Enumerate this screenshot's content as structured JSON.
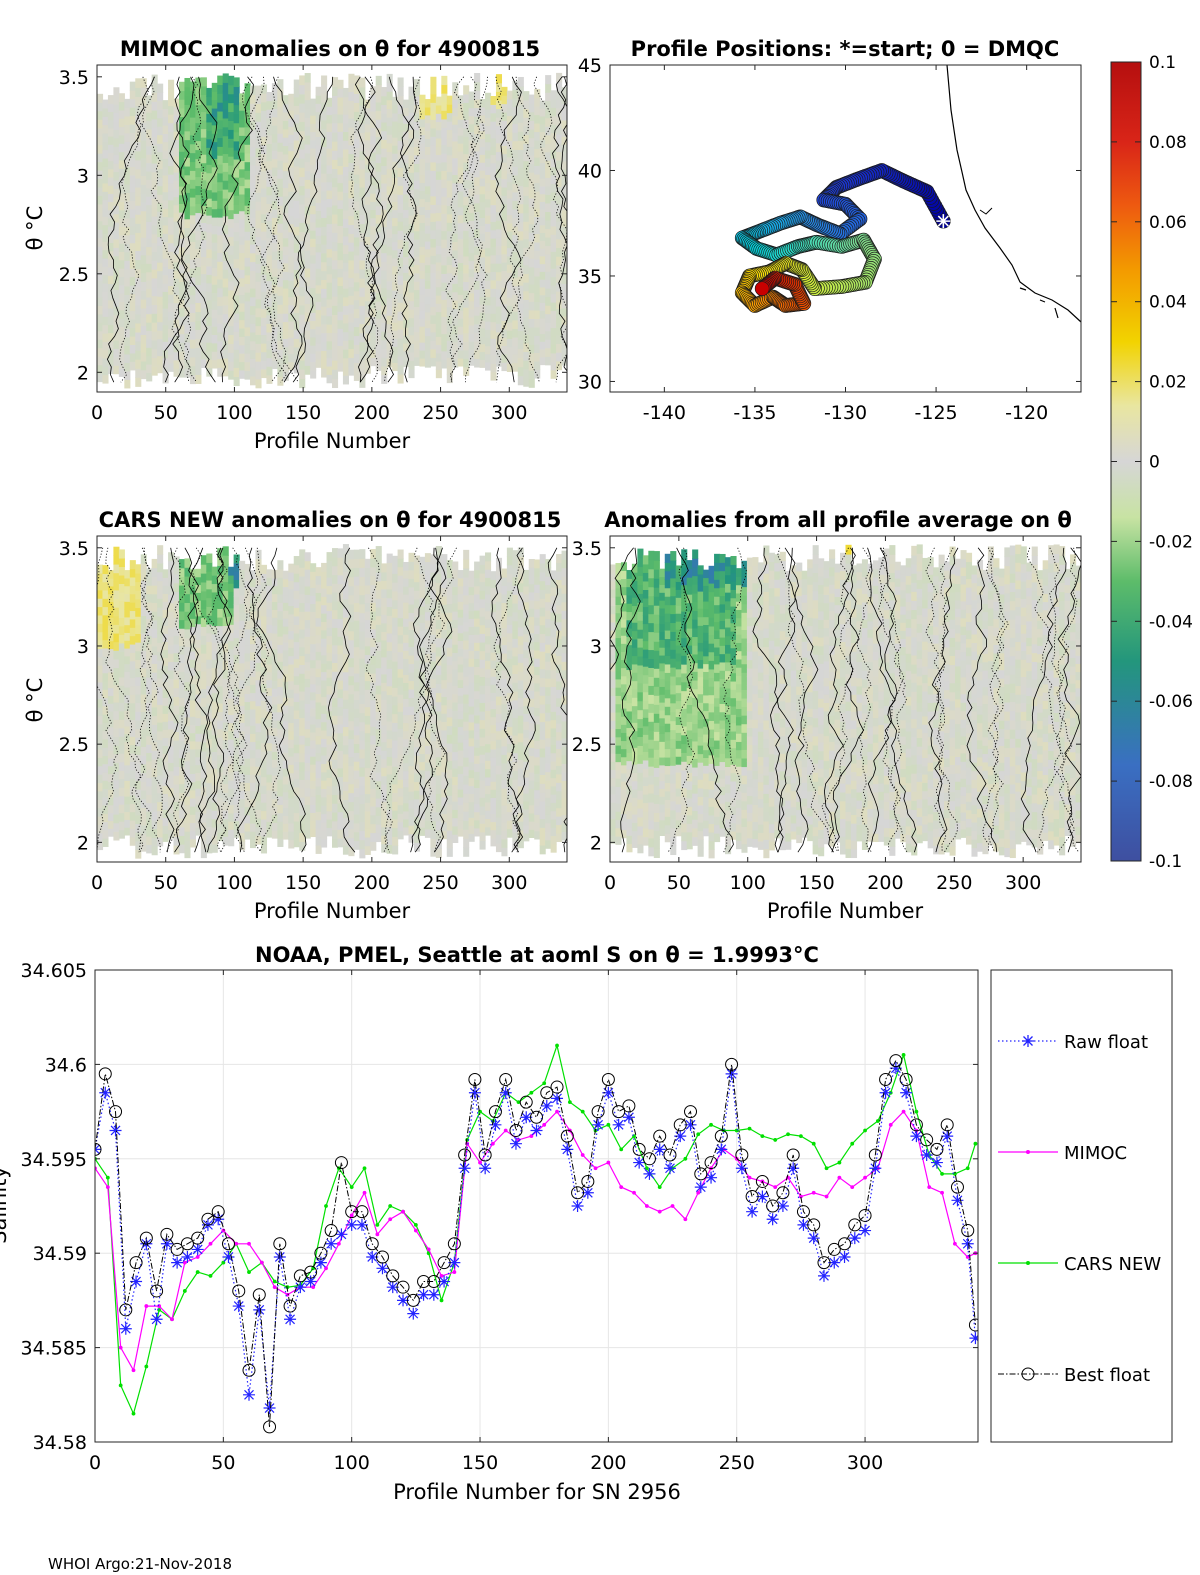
{
  "footer": "WHOI Argo:21-Nov-2018",
  "colors": {
    "raw": "#2323ff",
    "mimoc": "#ff00ff",
    "cars": "#00e000",
    "best": "#000000",
    "grid": "#e6e6e6"
  },
  "chart_data": [
    {
      "id": "mimoc",
      "type": "heatmap",
      "title": "MIMOC anomalies on θ  for 4900815",
      "xlabel": "Profile Number",
      "ylabel": "θ °C",
      "xlim": [
        0,
        342
      ],
      "ylim": [
        1.9,
        3.56
      ],
      "xticks": [
        "0",
        "50",
        "100",
        "150",
        "200",
        "250",
        "300"
      ],
      "yticks": [
        "2",
        "2.5",
        "3",
        "3.5"
      ],
      "anomaly_range": [
        -0.06,
        0.03
      ],
      "highlights": [
        {
          "x": [
            60,
            110
          ],
          "y": [
            2.8,
            3.5
          ],
          "value": -0.03
        },
        {
          "x": [
            80,
            105
          ],
          "y": [
            3.1,
            3.5
          ],
          "value": -0.05
        },
        {
          "x": [
            235,
            260
          ],
          "y": [
            3.3,
            3.5
          ],
          "value": 0.02
        },
        {
          "x": [
            285,
            300
          ],
          "y": [
            3.35,
            3.5
          ],
          "value": 0.02
        }
      ]
    },
    {
      "id": "positions",
      "type": "scatter",
      "title": "Profile Positions: *=start; 0 = DMQC",
      "xlim": [
        -143,
        -117
      ],
      "ylim": [
        29.5,
        45
      ],
      "xticks": [
        "-140",
        "-135",
        "-130",
        "-125",
        "-120"
      ],
      "yticks": [
        "30",
        "35",
        "40",
        "45"
      ],
      "track": [
        {
          "lon": -124.6,
          "lat": 37.6
        },
        {
          "lon": -125.5,
          "lat": 39.0
        },
        {
          "lon": -126.8,
          "lat": 39.5
        },
        {
          "lon": -128.0,
          "lat": 40.0
        },
        {
          "lon": -129.3,
          "lat": 39.6
        },
        {
          "lon": -130.5,
          "lat": 39.2
        },
        {
          "lon": -131.2,
          "lat": 38.6
        },
        {
          "lon": -130.0,
          "lat": 38.4
        },
        {
          "lon": -129.2,
          "lat": 37.7
        },
        {
          "lon": -130.3,
          "lat": 37.0
        },
        {
          "lon": -131.5,
          "lat": 37.4
        },
        {
          "lon": -132.5,
          "lat": 37.8
        },
        {
          "lon": -133.6,
          "lat": 37.5
        },
        {
          "lon": -134.8,
          "lat": 37.1
        },
        {
          "lon": -135.7,
          "lat": 36.8
        },
        {
          "lon": -134.9,
          "lat": 36.3
        },
        {
          "lon": -133.8,
          "lat": 36.0
        },
        {
          "lon": -132.6,
          "lat": 36.4
        },
        {
          "lon": -131.6,
          "lat": 36.6
        },
        {
          "lon": -130.2,
          "lat": 36.4
        },
        {
          "lon": -129.0,
          "lat": 36.7
        },
        {
          "lon": -128.4,
          "lat": 35.8
        },
        {
          "lon": -128.9,
          "lat": 34.7
        },
        {
          "lon": -130.2,
          "lat": 34.5
        },
        {
          "lon": -131.7,
          "lat": 34.4
        },
        {
          "lon": -132.4,
          "lat": 35.3
        },
        {
          "lon": -133.3,
          "lat": 35.6
        },
        {
          "lon": -134.2,
          "lat": 35.2
        },
        {
          "lon": -135.3,
          "lat": 35.0
        },
        {
          "lon": -135.7,
          "lat": 34.2
        },
        {
          "lon": -135.0,
          "lat": 33.6
        },
        {
          "lon": -134.0,
          "lat": 34.0
        },
        {
          "lon": -133.3,
          "lat": 33.6
        },
        {
          "lon": -132.3,
          "lat": 33.7
        },
        {
          "lon": -132.8,
          "lat": 34.6
        },
        {
          "lon": -133.9,
          "lat": 34.9
        },
        {
          "lon": -134.6,
          "lat": 34.4
        }
      ]
    },
    {
      "id": "cars",
      "type": "heatmap",
      "title": "CARS NEW anomalies on θ for 4900815",
      "xlabel": "Profile Number",
      "ylabel": "θ °C",
      "xlim": [
        0,
        342
      ],
      "ylim": [
        1.9,
        3.56
      ],
      "xticks": [
        "0",
        "50",
        "100",
        "150",
        "200",
        "250",
        "300"
      ],
      "yticks": [
        "2",
        "2.5",
        "3",
        "3.5"
      ],
      "highlights": [
        {
          "x": [
            0,
            30
          ],
          "y": [
            3.0,
            3.5
          ],
          "value": 0.02
        },
        {
          "x": [
            60,
            100
          ],
          "y": [
            3.1,
            3.5
          ],
          "value": -0.03
        },
        {
          "x": [
            95,
            105
          ],
          "y": [
            3.3,
            3.45
          ],
          "value": -0.06
        }
      ]
    },
    {
      "id": "allavg",
      "type": "heatmap",
      "title": "Anomalies from all profile average on θ",
      "xlabel": "Profile Number",
      "xlim": [
        0,
        342
      ],
      "ylim": [
        1.9,
        3.56
      ],
      "xticks": [
        "0",
        "50",
        "100",
        "150",
        "200",
        "250",
        "300"
      ],
      "yticks": [
        "2",
        "2.5",
        "3",
        "3.5"
      ],
      "highlights": [
        {
          "x": [
            5,
            100
          ],
          "y": [
            2.4,
            3.5
          ],
          "value": -0.025
        },
        {
          "x": [
            10,
            90
          ],
          "y": [
            2.9,
            3.5
          ],
          "value": -0.04
        },
        {
          "x": [
            40,
            100
          ],
          "y": [
            3.3,
            3.56
          ],
          "value": -0.06
        },
        {
          "x": [
            170,
            200
          ],
          "y": [
            3.45,
            3.56
          ],
          "value": 0.03
        }
      ]
    },
    {
      "id": "colorbar",
      "type": "colorbar",
      "range": [
        -0.1,
        0.1
      ],
      "ticks": [
        "0.1",
        "0.08",
        "0.06",
        "0.04",
        "0.02",
        "0",
        "-0.02",
        "-0.04",
        "-0.06",
        "-0.08",
        "-0.1"
      ],
      "tick_values": [
        0.1,
        0.08,
        0.06,
        0.04,
        0.02,
        0,
        -0.02,
        -0.04,
        -0.06,
        -0.08,
        -0.1
      ]
    },
    {
      "id": "salinity",
      "type": "line",
      "title": "NOAA, PMEL, Seattle at aoml S on θ = 1.9993°C",
      "xlabel": "Profile Number for SN 2956",
      "ylabel": "Salinity",
      "xlim": [
        0,
        344
      ],
      "ylim": [
        34.58,
        34.605
      ],
      "xticks": [
        "0",
        "50",
        "100",
        "150",
        "200",
        "250",
        "300"
      ],
      "yticks": [
        "34.58",
        "34.585",
        "34.59",
        "34.595",
        "34.6",
        "34.605"
      ],
      "legend": [
        "Raw float",
        "MIMOC",
        "CARS NEW",
        "Best float"
      ],
      "series": [
        {
          "name": "CARS NEW",
          "x": [
            0,
            5,
            10,
            15,
            20,
            25,
            30,
            35,
            40,
            45,
            50,
            55,
            60,
            65,
            70,
            75,
            80,
            85,
            90,
            95,
            100,
            105,
            110,
            115,
            120,
            125,
            130,
            135,
            140,
            145,
            150,
            155,
            160,
            165,
            170,
            175,
            180,
            185,
            190,
            195,
            200,
            205,
            210,
            215,
            220,
            225,
            230,
            235,
            240,
            245,
            250,
            255,
            260,
            265,
            270,
            275,
            280,
            285,
            290,
            295,
            300,
            305,
            310,
            315,
            320,
            325,
            330,
            335,
            340,
            343
          ],
          "y": [
            34.595,
            34.594,
            34.583,
            34.5815,
            34.584,
            34.587,
            34.5865,
            34.588,
            34.589,
            34.5888,
            34.5895,
            34.5905,
            34.589,
            34.5895,
            34.5885,
            34.5882,
            34.5883,
            34.5892,
            34.5925,
            34.5945,
            34.5935,
            34.5945,
            34.5915,
            34.5925,
            34.5922,
            34.5915,
            34.59,
            34.5875,
            34.5895,
            34.596,
            34.5975,
            34.597,
            34.5985,
            34.598,
            34.5985,
            34.599,
            34.601,
            34.598,
            34.5975,
            34.5965,
            34.5968,
            34.5955,
            34.5962,
            34.5945,
            34.5935,
            34.5945,
            34.595,
            34.5963,
            34.5968,
            34.5965,
            34.5965,
            34.5966,
            34.5962,
            34.596,
            34.5963,
            34.5962,
            34.5958,
            34.5945,
            34.5948,
            34.5958,
            34.5965,
            34.597,
            34.5985,
            34.6005,
            34.5975,
            34.5952,
            34.5942,
            34.5942,
            34.5945,
            34.5958
          ]
        },
        {
          "name": "MIMOC",
          "x": [
            0,
            5,
            10,
            15,
            20,
            25,
            30,
            35,
            40,
            45,
            50,
            55,
            60,
            65,
            70,
            75,
            80,
            85,
            90,
            95,
            100,
            105,
            110,
            115,
            120,
            125,
            130,
            135,
            140,
            145,
            150,
            155,
            160,
            165,
            170,
            175,
            180,
            185,
            190,
            195,
            200,
            205,
            210,
            215,
            220,
            225,
            230,
            235,
            240,
            245,
            250,
            255,
            260,
            265,
            270,
            275,
            280,
            285,
            290,
            295,
            300,
            305,
            310,
            315,
            320,
            325,
            330,
            335,
            340,
            343
          ],
          "y": [
            34.5945,
            34.5935,
            34.585,
            34.5838,
            34.5872,
            34.5872,
            34.5865,
            34.5895,
            34.5898,
            34.5905,
            34.5912,
            34.5905,
            34.5905,
            34.5895,
            34.5882,
            34.5878,
            34.5882,
            34.5882,
            34.5892,
            34.5905,
            34.592,
            34.5932,
            34.591,
            34.5918,
            34.5922,
            34.5912,
            34.5902,
            34.5888,
            34.589,
            34.5958,
            34.5948,
            34.5958,
            34.5965,
            34.596,
            34.5962,
            34.5968,
            34.5975,
            34.5965,
            34.5952,
            34.5945,
            34.5948,
            34.5935,
            34.5932,
            34.5925,
            34.5922,
            34.5925,
            34.5918,
            34.5932,
            34.5945,
            34.5955,
            34.595,
            34.594,
            34.5938,
            34.5935,
            34.594,
            34.593,
            34.5932,
            34.593,
            34.594,
            34.5935,
            34.594,
            34.5945,
            34.5968,
            34.5975,
            34.5965,
            34.5935,
            34.5932,
            34.5905,
            34.5898,
            34.59
          ]
        },
        {
          "name": "Raw float",
          "x": [
            0,
            4,
            8,
            12,
            16,
            20,
            24,
            28,
            32,
            36,
            40,
            44,
            48,
            52,
            56,
            60,
            64,
            68,
            72,
            76,
            80,
            84,
            88,
            92,
            96,
            100,
            104,
            108,
            112,
            116,
            120,
            124,
            128,
            132,
            136,
            140,
            144,
            148,
            152,
            156,
            160,
            164,
            168,
            172,
            176,
            180,
            184,
            188,
            192,
            196,
            200,
            204,
            208,
            212,
            216,
            220,
            224,
            228,
            232,
            236,
            240,
            244,
            248,
            252,
            256,
            260,
            264,
            268,
            272,
            276,
            280,
            284,
            288,
            292,
            296,
            300,
            304,
            308,
            312,
            316,
            320,
            324,
            328,
            332,
            336,
            340,
            343
          ],
          "y": [
            34.5955,
            34.5985,
            34.5965,
            34.586,
            34.5885,
            34.5905,
            34.5865,
            34.5905,
            34.5895,
            34.5898,
            34.5902,
            34.5915,
            34.5918,
            34.5898,
            34.5872,
            34.5825,
            34.587,
            34.5818,
            34.5898,
            34.5865,
            34.5882,
            34.5885,
            34.5895,
            34.5905,
            34.591,
            34.5915,
            34.5915,
            34.5898,
            34.5892,
            34.5882,
            34.5875,
            34.5868,
            34.5878,
            34.5878,
            34.5885,
            34.5895,
            34.5945,
            34.5985,
            34.5945,
            34.5968,
            34.5985,
            34.5958,
            34.5972,
            34.5965,
            34.5978,
            34.5982,
            34.5955,
            34.5925,
            34.5932,
            34.5968,
            34.5985,
            34.5968,
            34.5972,
            34.5948,
            34.5942,
            34.5955,
            34.5945,
            34.5962,
            34.5968,
            34.5935,
            34.594,
            34.5955,
            34.5995,
            34.5945,
            34.5922,
            34.593,
            34.5918,
            34.5925,
            34.5945,
            34.5915,
            34.5908,
            34.5888,
            34.5895,
            34.5898,
            34.5908,
            34.5912,
            34.5945,
            34.5985,
            34.5998,
            34.5985,
            34.5962,
            34.5952,
            34.5948,
            34.5962,
            34.5928,
            34.5905,
            34.5855
          ]
        },
        {
          "name": "Best float",
          "x": [
            0,
            4,
            8,
            12,
            16,
            20,
            24,
            28,
            32,
            36,
            40,
            44,
            48,
            52,
            56,
            60,
            64,
            68,
            72,
            76,
            80,
            84,
            88,
            92,
            96,
            100,
            104,
            108,
            112,
            116,
            120,
            124,
            128,
            132,
            136,
            140,
            144,
            148,
            152,
            156,
            160,
            164,
            168,
            172,
            176,
            180,
            184,
            188,
            192,
            196,
            200,
            204,
            208,
            212,
            216,
            220,
            224,
            228,
            232,
            236,
            240,
            244,
            248,
            252,
            256,
            260,
            264,
            268,
            272,
            276,
            280,
            284,
            288,
            292,
            296,
            300,
            304,
            308,
            312,
            316,
            320,
            324,
            328,
            332,
            336,
            340,
            343
          ],
          "y": [
            34.5955,
            34.5995,
            34.5975,
            34.587,
            34.5895,
            34.5908,
            34.588,
            34.591,
            34.5902,
            34.5905,
            34.5908,
            34.5918,
            34.5922,
            34.5905,
            34.588,
            34.5838,
            34.5878,
            34.5808,
            34.5905,
            34.5872,
            34.5888,
            34.589,
            34.59,
            34.5912,
            34.5948,
            34.5922,
            34.5922,
            34.5905,
            34.5898,
            34.5888,
            34.5882,
            34.5875,
            34.5885,
            34.5885,
            34.5895,
            34.5905,
            34.5952,
            34.5992,
            34.5952,
            34.5975,
            34.5992,
            34.5965,
            34.598,
            34.5972,
            34.5985,
            34.5988,
            34.5962,
            34.5932,
            34.5938,
            34.5975,
            34.5992,
            34.5975,
            34.5978,
            34.5955,
            34.595,
            34.5962,
            34.5952,
            34.5968,
            34.5975,
            34.5942,
            34.5948,
            34.5962,
            34.6,
            34.5952,
            34.593,
            34.5938,
            34.5925,
            34.5932,
            34.5952,
            34.5922,
            34.5915,
            34.5895,
            34.5902,
            34.5905,
            34.5915,
            34.592,
            34.5952,
            34.5992,
            34.6002,
            34.5992,
            34.5968,
            34.596,
            34.5955,
            34.5968,
            34.5935,
            34.5912,
            34.5862
          ]
        }
      ]
    }
  ]
}
